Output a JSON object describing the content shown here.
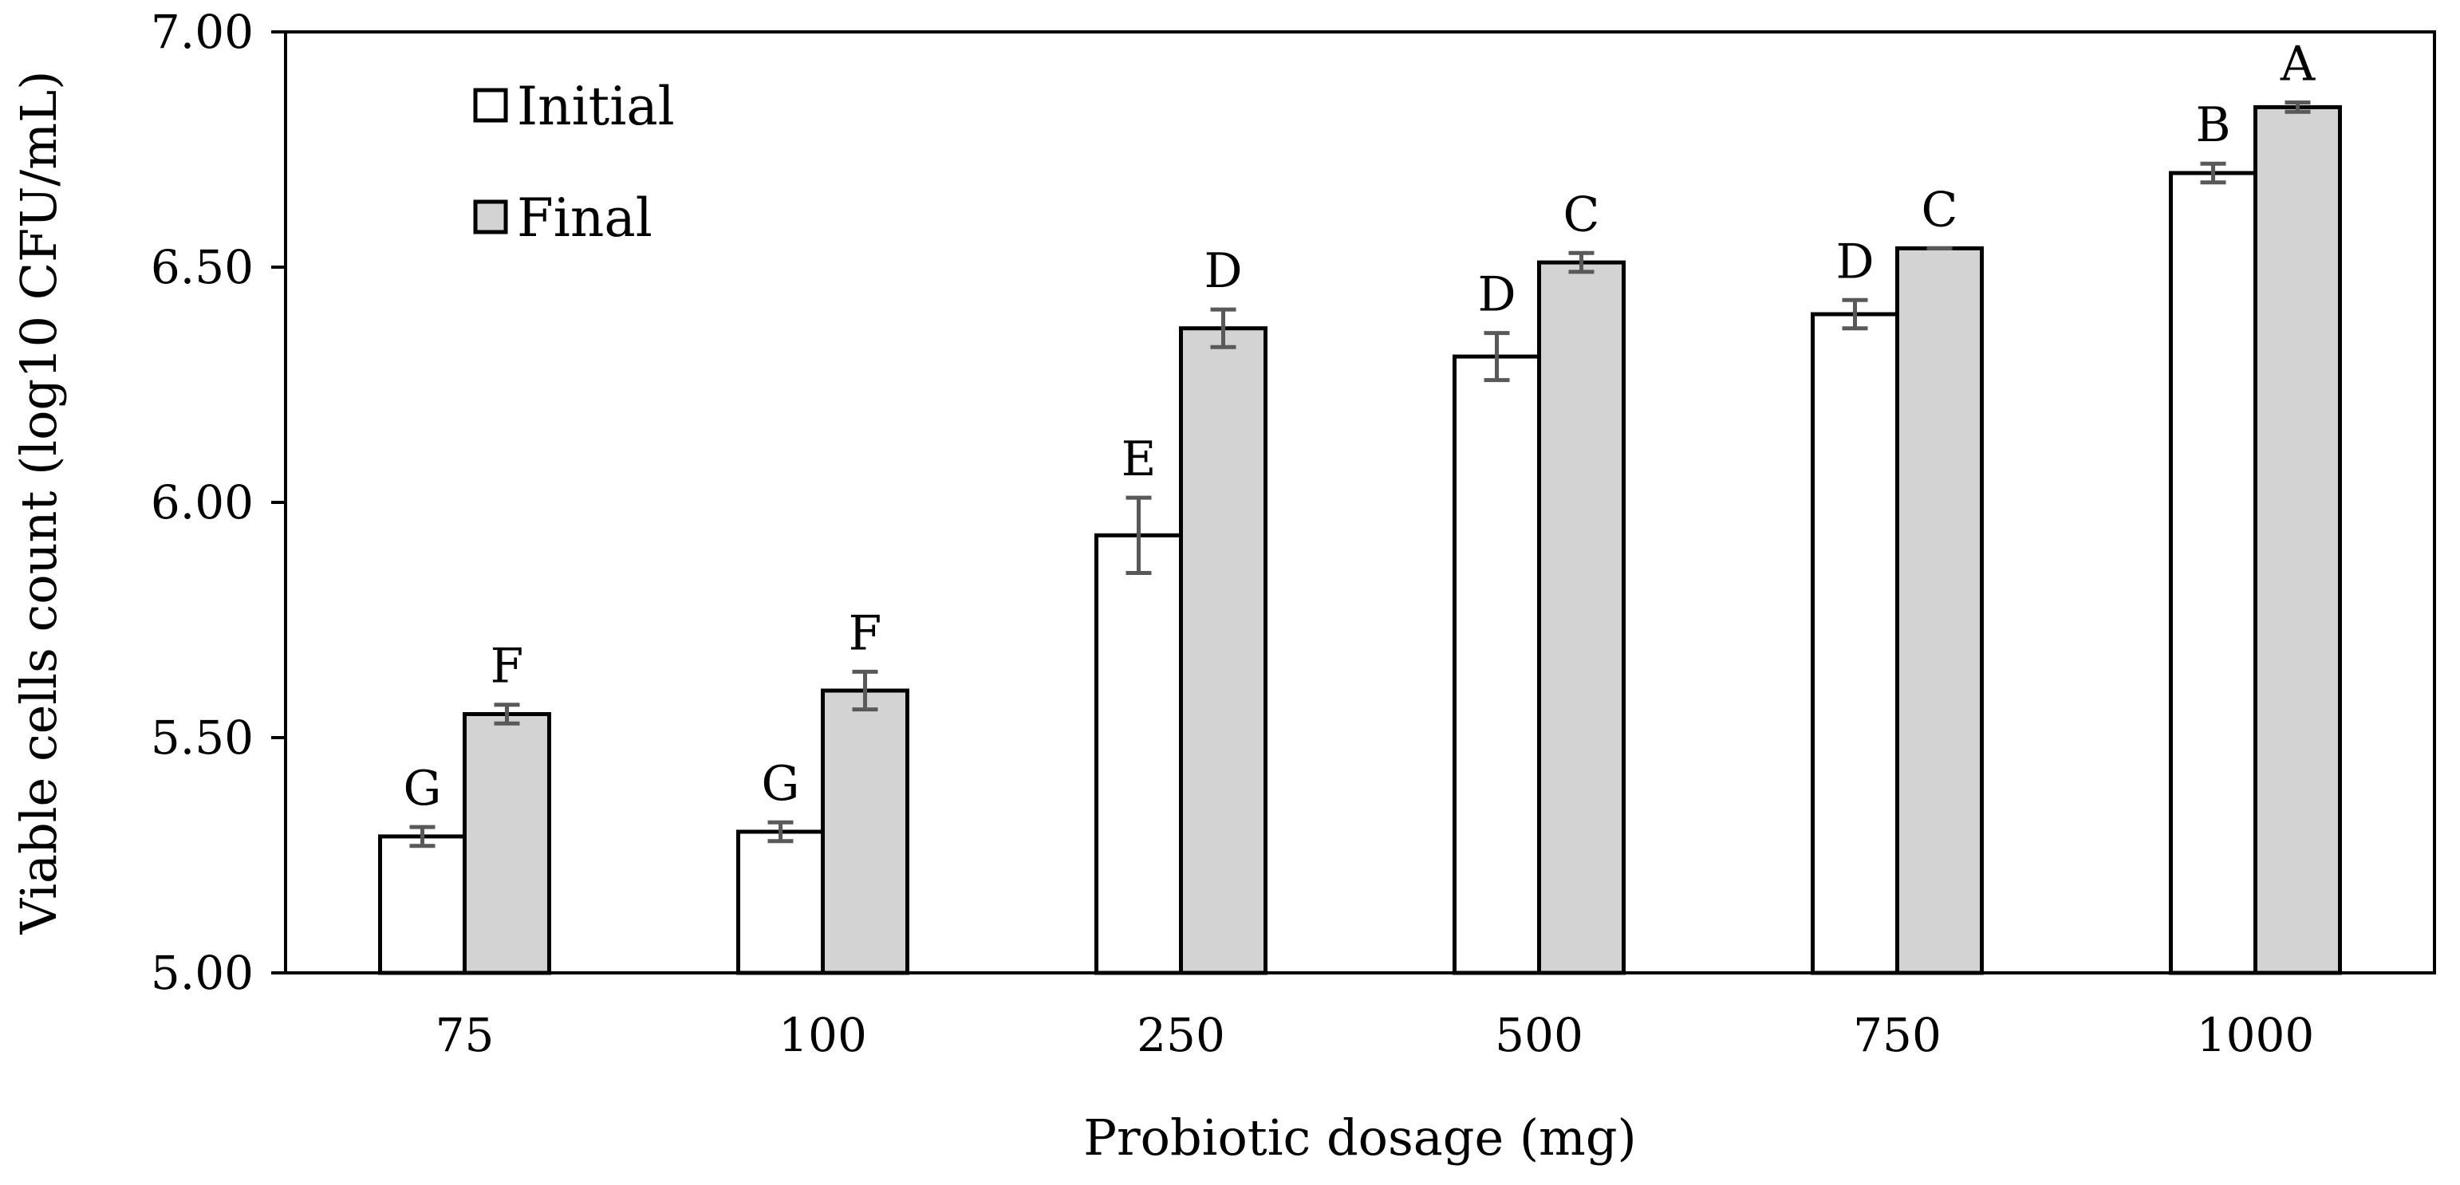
{
  "chart_data": {
    "type": "bar",
    "title": "",
    "xlabel": "Probiotic dosage (mg)",
    "ylabel": "Viable cells count (log10 CFU/mL)",
    "ylim": [
      5.0,
      7.0
    ],
    "yticks": [
      "5.00",
      "5.50",
      "6.00",
      "6.50",
      "7.00"
    ],
    "categories": [
      "75",
      "100",
      "250",
      "500",
      "750",
      "1000"
    ],
    "legend_position": "top-left",
    "series": [
      {
        "name": "Initial",
        "color": "#ffffff",
        "values": [
          5.29,
          5.3,
          5.93,
          6.31,
          6.4,
          6.7
        ],
        "errors": [
          0.02,
          0.02,
          0.08,
          0.05,
          0.03,
          0.02
        ],
        "letters": [
          "G",
          "G",
          "E",
          "D",
          "D",
          "B"
        ]
      },
      {
        "name": "Final",
        "color": "#d3d3d3",
        "values": [
          5.55,
          5.6,
          6.37,
          6.51,
          6.54,
          6.84
        ],
        "errors": [
          0.02,
          0.04,
          0.04,
          0.02,
          0.0,
          0.01
        ],
        "letters": [
          "F",
          "F",
          "D",
          "C",
          "C",
          "A"
        ]
      }
    ]
  }
}
